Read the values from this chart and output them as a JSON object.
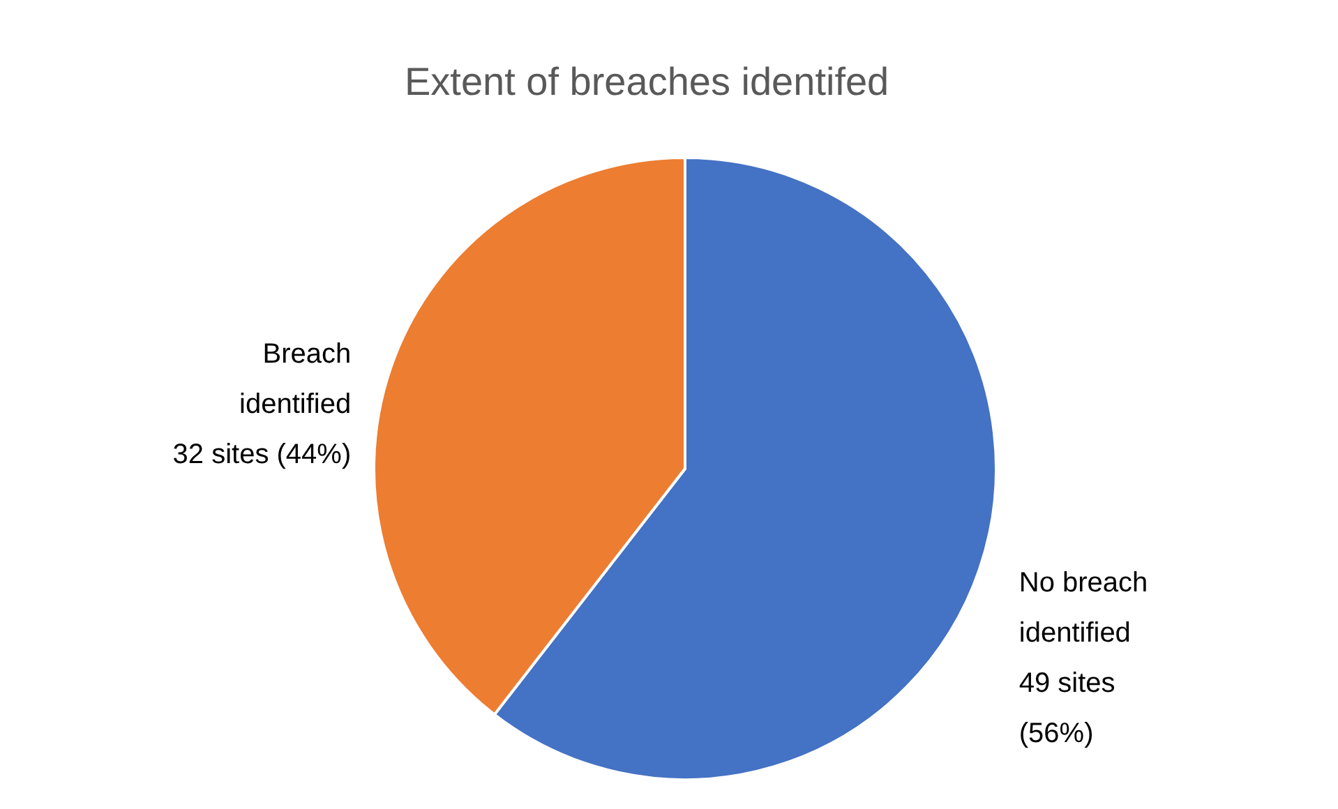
{
  "chart_data": {
    "type": "pie",
    "title": "Extent of breaches identifed",
    "categories": [
      "No breach identified",
      "Breach identified"
    ],
    "values": [
      49,
      32
    ],
    "colors": [
      "#4472c4",
      "#ed7d31"
    ],
    "value_labels": [
      "49 sites (56%)",
      "32 sites (44%)"
    ]
  }
}
